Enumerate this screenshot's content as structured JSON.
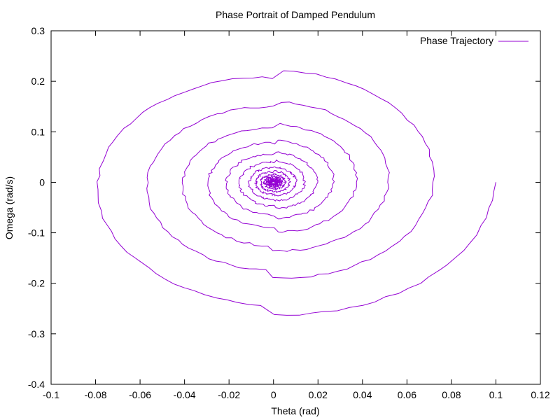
{
  "chart_data": {
    "type": "line",
    "title": "Phase Portrait of Damped Pendulum",
    "xlabel": "Theta (rad)",
    "ylabel": "Omega (rad/s)",
    "xlim": [
      -0.1,
      0.12
    ],
    "ylim": [
      -0.4,
      0.3
    ],
    "xticks": [
      "-0.1",
      "-0.08",
      "-0.06",
      "-0.04",
      "-0.02",
      "0",
      "0.02",
      "0.04",
      "0.06",
      "0.08",
      "0.1",
      "0.12"
    ],
    "yticks": [
      "-0.4",
      "-0.3",
      "-0.2",
      "-0.1",
      "0",
      "0.1",
      "0.2",
      "0.3"
    ],
    "grid": false,
    "legend_position": "top-right",
    "series": [
      {
        "name": "Phase Trajectory",
        "color": "#9400d3",
        "initial": {
          "theta": 0.1,
          "omega": 0.0
        },
        "peak_omega": 0.275,
        "min_theta": -0.093,
        "decay_factor_per_cycle": 0.72,
        "cycles": 14
      }
    ]
  }
}
